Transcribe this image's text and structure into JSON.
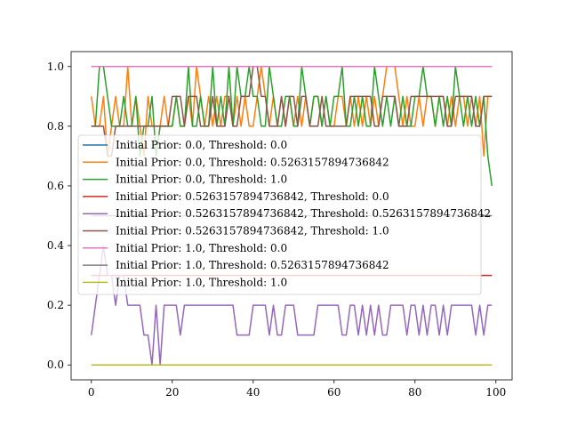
{
  "chart_data": {
    "type": "line",
    "title": "",
    "xlabel": "",
    "ylabel": "",
    "xlim": [
      -5,
      104
    ],
    "ylim": [
      -0.05,
      1.05
    ],
    "x_ticks": [
      0,
      20,
      40,
      60,
      80,
      100
    ],
    "y_ticks": [
      0.0,
      0.2,
      0.4,
      0.6,
      0.8,
      1.0
    ],
    "x_tick_labels": [
      "0",
      "20",
      "40",
      "60",
      "80",
      "100"
    ],
    "y_tick_labels": [
      "0.0",
      "0.2",
      "0.4",
      "0.6",
      "0.8",
      "1.0"
    ],
    "grid": false,
    "legend_position": "center-left",
    "series": [
      {
        "name": "Initial Prior: 0.0, Threshold: 0.0",
        "color": "#1f77b4",
        "values": [
          1,
          1,
          1,
          1,
          1,
          1,
          1,
          1,
          1,
          1,
          1,
          1,
          1,
          1,
          1,
          1,
          1,
          1,
          1,
          1,
          1,
          1,
          1,
          1,
          1,
          1,
          1,
          1,
          1,
          1,
          1,
          1,
          1,
          1,
          1,
          1,
          1,
          1,
          1,
          1,
          1,
          1,
          1,
          1,
          1,
          1,
          1,
          1,
          1,
          1,
          1,
          1,
          1,
          1,
          1,
          1,
          1,
          1,
          1,
          1,
          1,
          1,
          1,
          1,
          1,
          1,
          1,
          1,
          1,
          1,
          1,
          1,
          1,
          1,
          1,
          1,
          1,
          1,
          1,
          1,
          1,
          1,
          1,
          1,
          1,
          1,
          1,
          1,
          1,
          1,
          1,
          1,
          1,
          1,
          1,
          1,
          1,
          1,
          1,
          1
        ]
      },
      {
        "name": "Initial Prior: 0.0, Threshold: 0.5263157894736842",
        "color": "#ff7f0e",
        "values": [
          0.9,
          0.8,
          0.8,
          0.9,
          0.7,
          0.8,
          0.9,
          0.8,
          0.8,
          1,
          0.8,
          0.9,
          0.8,
          0.7,
          0.9,
          0.8,
          0.8,
          0.8,
          0.9,
          0.8,
          0.8,
          0.9,
          0.8,
          0.8,
          0.9,
          0.8,
          1,
          0.9,
          0.8,
          0.9,
          0.8,
          0.9,
          0.8,
          0.9,
          0.9,
          0.8,
          0.9,
          0.8,
          0.9,
          0.8,
          0.8,
          0.9,
          1,
          0.9,
          0.8,
          0.9,
          0.8,
          0.9,
          0.8,
          0.9,
          0.8,
          0.9,
          0.8,
          0.9,
          0.8,
          0.9,
          0.9,
          0.8,
          0.9,
          0.8,
          0.8,
          0.9,
          0.9,
          0.8,
          0.9,
          0.8,
          0.9,
          0.8,
          0.9,
          0.8,
          0.9,
          0.8,
          0.9,
          1,
          1,
          1,
          0.9,
          0.8,
          0.9,
          0.8,
          0.8,
          0.9,
          0.8,
          0.9,
          0.9,
          0.8,
          0.9,
          0.9,
          0.8,
          0.9,
          0.8,
          0.9,
          0.9,
          0.8,
          0.9,
          0.8,
          0.9,
          0.7,
          0.9,
          0.9
        ]
      },
      {
        "name": "Initial Prior: 0.0, Threshold: 1.0",
        "color": "#2ca02c",
        "values": [
          0.8,
          0.8,
          1,
          1,
          0.9,
          0.8,
          0.8,
          0.8,
          0.9,
          0.8,
          0.8,
          0.9,
          0.7,
          0.8,
          0.8,
          0.9,
          0.7,
          0.8,
          0.8,
          0.8,
          0.8,
          0.9,
          0.8,
          0.8,
          1,
          0.8,
          0.8,
          0.9,
          0.8,
          0.8,
          1,
          0.8,
          0.9,
          0.8,
          1,
          0.8,
          1,
          0.9,
          0.9,
          1,
          0.9,
          0.9,
          0.8,
          0.8,
          1,
          0.9,
          0.8,
          0.8,
          0.9,
          0.9,
          0.8,
          0.8,
          1,
          0.9,
          0.8,
          0.9,
          0.9,
          0.8,
          0.9,
          0.8,
          0.9,
          0.9,
          1,
          0.8,
          0.8,
          0.9,
          0.8,
          0.9,
          0.8,
          0.8,
          1,
          0.9,
          0.8,
          0.9,
          0.8,
          0.9,
          0.8,
          0.9,
          0.8,
          0.8,
          0.9,
          0.9,
          1,
          0.9,
          0.9,
          0.8,
          0.9,
          0.8,
          0.9,
          0.8,
          1,
          0.9,
          0.8,
          0.9,
          0.8,
          0.9,
          0.8,
          0.9,
          0.7,
          0.6
        ]
      },
      {
        "name": "Initial Prior: 0.5263157894736842, Threshold: 0.0",
        "color": "#d62728",
        "values": [
          0.3,
          0.3,
          0.3,
          0.3,
          0.3,
          0.3,
          0.3,
          0.3,
          0.3,
          0.3,
          0.3,
          0.3,
          0.3,
          0.3,
          0.3,
          0.3,
          0.3,
          0.3,
          0.3,
          0.3,
          0.3,
          0.3,
          0.3,
          0.3,
          0.3,
          0.3,
          0.3,
          0.3,
          0.3,
          0.3,
          0.3,
          0.3,
          0.3,
          0.3,
          0.3,
          0.3,
          0.3,
          0.3,
          0.3,
          0.3,
          0.3,
          0.3,
          0.3,
          0.3,
          0.3,
          0.3,
          0.3,
          0.3,
          0.3,
          0.3,
          0.3,
          0.3,
          0.3,
          0.3,
          0.3,
          0.3,
          0.3,
          0.3,
          0.3,
          0.3,
          0.3,
          0.3,
          0.3,
          0.3,
          0.3,
          0.3,
          0.3,
          0.3,
          0.3,
          0.3,
          0.3,
          0.3,
          0.3,
          0.3,
          0.3,
          0.3,
          0.3,
          0.3,
          0.3,
          0.3,
          0.3,
          0.3,
          0.3,
          0.3,
          0.3,
          0.3,
          0.3,
          0.3,
          0.3,
          0.3,
          0.3,
          0.3,
          0.3,
          0.3,
          0.3,
          0.3,
          0.3,
          0.3,
          0.3,
          0.3
        ]
      },
      {
        "name": "Initial Prior: 0.5263157894736842, Threshold: 0.5263157894736842",
        "color": "#9467bd",
        "values": [
          0.1,
          0.2,
          0.3,
          0.4,
          0.3,
          0.3,
          0.2,
          0.3,
          0.3,
          0.2,
          0.2,
          0.2,
          0.2,
          0.1,
          0.1,
          0.0,
          0.2,
          0.0,
          0.2,
          0.2,
          0.2,
          0.2,
          0.1,
          0.2,
          0.2,
          0.2,
          0.2,
          0.2,
          0.2,
          0.2,
          0.2,
          0.2,
          0.2,
          0.2,
          0.2,
          0.2,
          0.1,
          0.1,
          0.1,
          0.1,
          0.2,
          0.2,
          0.2,
          0.2,
          0.1,
          0.2,
          0.1,
          0.1,
          0.2,
          0.2,
          0.2,
          0.1,
          0.1,
          0.1,
          0.1,
          0.1,
          0.2,
          0.2,
          0.2,
          0.2,
          0.2,
          0.2,
          0.1,
          0.1,
          0.2,
          0.2,
          0.1,
          0.2,
          0.1,
          0.2,
          0.1,
          0.2,
          0.1,
          0.1,
          0.2,
          0.2,
          0.2,
          0.2,
          0.1,
          0.2,
          0.2,
          0.1,
          0.2,
          0.1,
          0.2,
          0.2,
          0.1,
          0.2,
          0.1,
          0.2,
          0.2,
          0.2,
          0.2,
          0.2,
          0.2,
          0.1,
          0.2,
          0.1,
          0.2,
          0.2
        ]
      },
      {
        "name": "Initial Prior: 0.5263157894736842, Threshold: 1.0",
        "color": "#8c564b",
        "values": [
          0.8,
          0.8,
          0.8,
          0.8,
          0.7,
          0.7,
          0.8,
          0.8,
          0.8,
          0.8,
          0.8,
          0.8,
          0.8,
          0.8,
          0.8,
          0.8,
          0.8,
          0.8,
          0.8,
          0.8,
          0.9,
          0.9,
          0.9,
          0.8,
          0.9,
          0.9,
          0.9,
          0.8,
          0.8,
          0.8,
          0.9,
          0.8,
          0.8,
          0.8,
          0.9,
          0.8,
          0.8,
          0.9,
          0.9,
          0.9,
          1,
          1,
          0.9,
          0.9,
          0.8,
          0.8,
          0.8,
          0.9,
          0.8,
          0.9,
          0.9,
          0.8,
          0.9,
          0.9,
          0.8,
          0.8,
          0.8,
          0.9,
          0.8,
          0.8,
          0.8,
          0.8,
          0.8,
          0.8,
          0.9,
          0.9,
          0.9,
          0.9,
          0.9,
          0.9,
          0.8,
          0.8,
          0.9,
          0.9,
          0.9,
          0.9,
          0.8,
          0.8,
          0.8,
          0.9,
          0.9,
          0.9,
          0.9,
          0.9,
          0.9,
          0.9,
          0.9,
          0.9,
          0.8,
          0.8,
          0.9,
          0.9,
          0.9,
          0.9,
          0.9,
          0.8,
          0.8,
          0.9,
          0.9,
          0.9
        ]
      },
      {
        "name": "Initial Prior: 1.0, Threshold: 0.0",
        "color": "#e377c2",
        "values": [
          1,
          1,
          1,
          1,
          1,
          1,
          1,
          1,
          1,
          1,
          1,
          1,
          1,
          1,
          1,
          1,
          1,
          1,
          1,
          1,
          1,
          1,
          1,
          1,
          1,
          1,
          1,
          1,
          1,
          1,
          1,
          1,
          1,
          1,
          1,
          1,
          1,
          1,
          1,
          1,
          1,
          1,
          1,
          1,
          1,
          1,
          1,
          1,
          1,
          1,
          1,
          1,
          1,
          1,
          1,
          1,
          1,
          1,
          1,
          1,
          1,
          1,
          1,
          1,
          1,
          1,
          1,
          1,
          1,
          1,
          1,
          1,
          1,
          1,
          1,
          1,
          1,
          1,
          1,
          1,
          1,
          1,
          1,
          1,
          1,
          1,
          1,
          1,
          1,
          1,
          1,
          1,
          1,
          1,
          1,
          1,
          1,
          1,
          1,
          1
        ]
      },
      {
        "name": "Initial Prior: 1.0, Threshold: 0.5263157894736842",
        "color": "#7f7f7f",
        "values": [
          0.5,
          0.5,
          0.5,
          0.5,
          0.5,
          0.5,
          0.5,
          0.5,
          0.5,
          0.5,
          0.5,
          0.5,
          0.5,
          0.5,
          0.5,
          0.5,
          0.5,
          0.5,
          0.5,
          0.5,
          0.5,
          0.5,
          0.5,
          0.5,
          0.5,
          0.5,
          0.5,
          0.5,
          0.5,
          0.5,
          0.5,
          0.5,
          0.5,
          0.5,
          0.5,
          0.5,
          0.5,
          0.5,
          0.5,
          0.5,
          0.5,
          0.5,
          0.5,
          0.5,
          0.5,
          0.5,
          0.5,
          0.5,
          0.5,
          0.5,
          0.5,
          0.5,
          0.5,
          0.5,
          0.5,
          0.5,
          0.5,
          0.5,
          0.5,
          0.5,
          0.5,
          0.5,
          0.5,
          0.5,
          0.5,
          0.5,
          0.5,
          0.5,
          0.5,
          0.5,
          0.5,
          0.5,
          0.5,
          0.5,
          0.5,
          0.5,
          0.5,
          0.5,
          0.5,
          0.5,
          0.5,
          0.5,
          0.5,
          0.5,
          0.5,
          0.5,
          0.5,
          0.5,
          0.5,
          0.5,
          0.5,
          0.5,
          0.5,
          0.5,
          0.5,
          0.5,
          0.5,
          0.5,
          0.5,
          0.5
        ]
      },
      {
        "name": "Initial Prior: 1.0, Threshold: 1.0",
        "color": "#bcbd22",
        "values": [
          0,
          0,
          0,
          0,
          0,
          0,
          0,
          0,
          0,
          0,
          0,
          0,
          0,
          0,
          0,
          0,
          0,
          0,
          0,
          0,
          0,
          0,
          0,
          0,
          0,
          0,
          0,
          0,
          0,
          0,
          0,
          0,
          0,
          0,
          0,
          0,
          0,
          0,
          0,
          0,
          0,
          0,
          0,
          0,
          0,
          0,
          0,
          0,
          0,
          0,
          0,
          0,
          0,
          0,
          0,
          0,
          0,
          0,
          0,
          0,
          0,
          0,
          0,
          0,
          0,
          0,
          0,
          0,
          0,
          0,
          0,
          0,
          0,
          0,
          0,
          0,
          0,
          0,
          0,
          0,
          0,
          0,
          0,
          0,
          0,
          0,
          0,
          0,
          0,
          0,
          0,
          0,
          0,
          0,
          0,
          0,
          0,
          0,
          0,
          0
        ]
      }
    ]
  }
}
